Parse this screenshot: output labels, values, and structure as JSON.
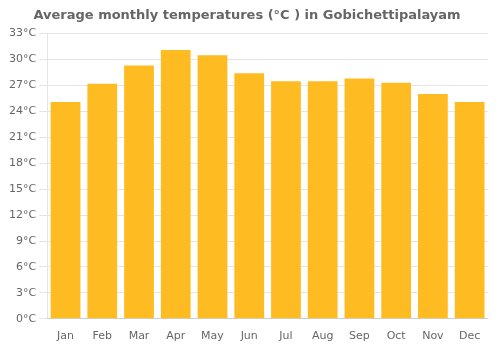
{
  "chart_data": {
    "type": "bar",
    "title": "Average monthly temperatures (°C ) in Gobichettipalayam",
    "categories": [
      "Jan",
      "Feb",
      "Mar",
      "Apr",
      "May",
      "Jun",
      "Jul",
      "Aug",
      "Sep",
      "Oct",
      "Nov",
      "Dec"
    ],
    "values": [
      25.1,
      27.2,
      29.3,
      31.1,
      30.5,
      28.4,
      27.5,
      27.5,
      27.8,
      27.3,
      26.0,
      25.1
    ],
    "color": "#FFBB22",
    "ylim": [
      0,
      33
    ],
    "yticks": [
      {
        "value": 0,
        "label": "0°C"
      },
      {
        "value": 3,
        "label": "3°C"
      },
      {
        "value": 6,
        "label": "6°C"
      },
      {
        "value": 9,
        "label": "9°C"
      },
      {
        "value": 12,
        "label": "12°C"
      },
      {
        "value": 15,
        "label": "15°C"
      },
      {
        "value": 18,
        "label": "18°C"
      },
      {
        "value": 21,
        "label": "21°C"
      },
      {
        "value": 24,
        "label": "24°C"
      },
      {
        "value": 27,
        "label": "27°C"
      },
      {
        "value": 30,
        "label": "30°C"
      },
      {
        "value": 33,
        "label": "33°C"
      }
    ],
    "grid": true
  }
}
